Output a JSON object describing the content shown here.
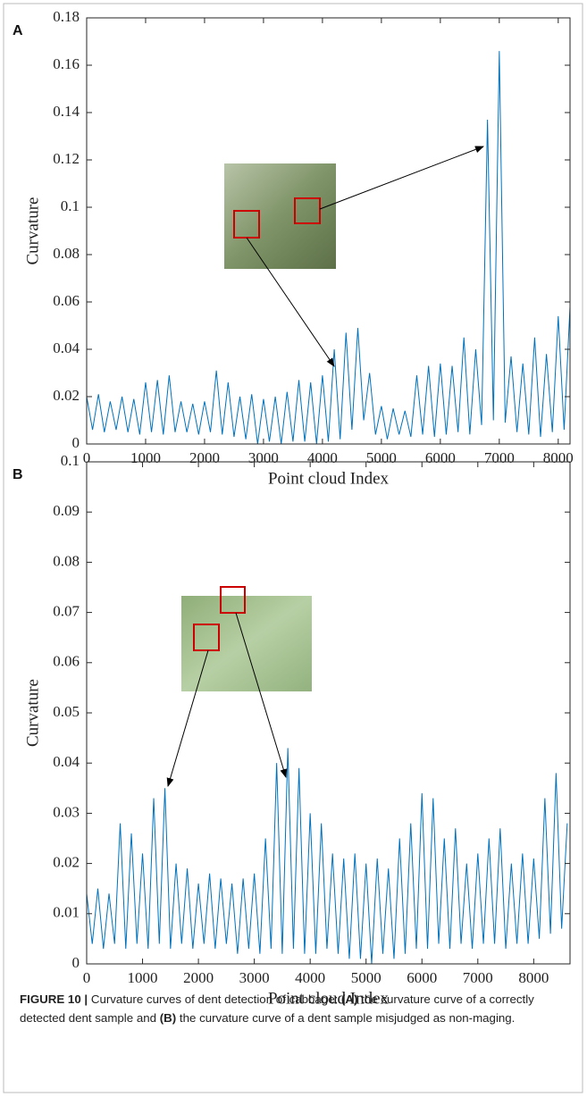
{
  "chart_data": [
    {
      "type": "line",
      "panel_label": "A",
      "xlabel": "Point cloud Index",
      "ylabel": "Curvature",
      "color": "#0072bd",
      "x": [
        0,
        100,
        200,
        300,
        400,
        500,
        600,
        700,
        800,
        900,
        1000,
        1100,
        1200,
        1300,
        1400,
        1500,
        1600,
        1700,
        1800,
        1900,
        2000,
        2100,
        2200,
        2300,
        2400,
        2500,
        2600,
        2700,
        2800,
        2900,
        3000,
        3100,
        3200,
        3300,
        3400,
        3500,
        3600,
        3700,
        3800,
        3900,
        4000,
        4100,
        4200,
        4300,
        4400,
        4500,
        4600,
        4700,
        4800,
        4900,
        5000,
        5100,
        5200,
        5300,
        5400,
        5500,
        5600,
        5700,
        5800,
        5900,
        6000,
        6100,
        6200,
        6300,
        6400,
        6500,
        6600,
        6700,
        6800,
        6900,
        7000,
        7100,
        7200,
        7300,
        7400,
        7500,
        7600,
        7700,
        7800,
        7900,
        8000,
        8100,
        8200
      ],
      "values": [
        0.02,
        0.006,
        0.021,
        0.005,
        0.018,
        0.006,
        0.02,
        0.005,
        0.019,
        0.004,
        0.026,
        0.005,
        0.027,
        0.004,
        0.029,
        0.005,
        0.018,
        0.005,
        0.017,
        0.004,
        0.018,
        0.005,
        0.031,
        0.004,
        0.026,
        0.003,
        0.02,
        0.002,
        0.021,
        0,
        0.019,
        0.001,
        0.02,
        0,
        0.022,
        0.001,
        0.027,
        0.001,
        0.026,
        0,
        0.029,
        0.001,
        0.04,
        0.002,
        0.047,
        0.006,
        0.049,
        0.01,
        0.03,
        0.004,
        0.016,
        0.002,
        0.015,
        0.004,
        0.014,
        0.003,
        0.029,
        0.004,
        0.033,
        0.003,
        0.034,
        0.004,
        0.033,
        0.005,
        0.045,
        0.004,
        0.04,
        0.008,
        0.137,
        0.01,
        0.166,
        0.009,
        0.037,
        0.005,
        0.034,
        0.004,
        0.045,
        0.003,
        0.038,
        0.005,
        0.054,
        0.006,
        0.058
      ],
      "xlim": [
        0,
        8200
      ],
      "ylim": [
        0,
        0.18
      ],
      "xticks": [
        0,
        1000,
        2000,
        3000,
        4000,
        5000,
        6000,
        7000,
        8000
      ],
      "yticks": [
        0,
        0.02,
        0.04,
        0.06,
        0.08,
        0.1,
        0.12,
        0.14,
        0.16,
        0.18
      ]
    },
    {
      "type": "line",
      "panel_label": "B",
      "xlabel": "Point cloud Index",
      "ylabel": "Curvature",
      "color": "#0072bd",
      "x": [
        0,
        100,
        200,
        300,
        400,
        500,
        600,
        700,
        800,
        900,
        1000,
        1100,
        1200,
        1300,
        1400,
        1500,
        1600,
        1700,
        1800,
        1900,
        2000,
        2100,
        2200,
        2300,
        2400,
        2500,
        2600,
        2700,
        2800,
        2900,
        3000,
        3100,
        3200,
        3300,
        3400,
        3500,
        3600,
        3700,
        3800,
        3900,
        4000,
        4100,
        4200,
        4300,
        4400,
        4500,
        4600,
        4700,
        4800,
        4900,
        5000,
        5100,
        5200,
        5300,
        5400,
        5500,
        5600,
        5700,
        5800,
        5900,
        6000,
        6100,
        6200,
        6300,
        6400,
        6500,
        6600,
        6700,
        6800,
        6900,
        7000,
        7100,
        7200,
        7300,
        7400,
        7500,
        7600,
        7700,
        7800,
        7900,
        8000,
        8100,
        8200,
        8300,
        8400,
        8500,
        8600
      ],
      "values": [
        0.014,
        0.004,
        0.015,
        0.003,
        0.014,
        0.004,
        0.028,
        0.003,
        0.026,
        0.004,
        0.022,
        0.003,
        0.033,
        0.004,
        0.035,
        0.003,
        0.02,
        0.004,
        0.019,
        0.003,
        0.016,
        0.004,
        0.018,
        0.003,
        0.017,
        0.004,
        0.016,
        0.002,
        0.017,
        0.003,
        0.018,
        0.002,
        0.025,
        0.003,
        0.04,
        0.002,
        0.043,
        0.003,
        0.039,
        0.002,
        0.03,
        0.002,
        0.028,
        0.003,
        0.022,
        0.002,
        0.021,
        0.001,
        0.022,
        0.001,
        0.02,
        0,
        0.021,
        0.002,
        0.019,
        0.001,
        0.025,
        0.002,
        0.028,
        0.003,
        0.034,
        0.003,
        0.033,
        0.004,
        0.025,
        0.003,
        0.027,
        0.004,
        0.02,
        0.003,
        0.022,
        0.004,
        0.025,
        0.004,
        0.027,
        0.003,
        0.02,
        0.004,
        0.022,
        0.004,
        0.021,
        0.005,
        0.033,
        0.006,
        0.038,
        0.007,
        0.028
      ],
      "xlim": [
        0,
        8650
      ],
      "ylim": [
        0,
        0.1
      ],
      "xticks": [
        0,
        1000,
        2000,
        3000,
        4000,
        5000,
        6000,
        7000,
        8000
      ],
      "yticks": [
        0,
        0.01,
        0.02,
        0.03,
        0.04,
        0.05,
        0.06,
        0.07,
        0.08,
        0.09,
        0.1
      ]
    }
  ],
  "caption": {
    "label": "FIGURE 10 |",
    "text1": "Curvature curves of dent detection of cabbage:",
    "ref_a": "(A)",
    "text2": "the curvature curve of a correctly detected dent sample and",
    "ref_b": "(B)",
    "text3": "the curvature curve of a dent sample misjudged as non-maging."
  }
}
